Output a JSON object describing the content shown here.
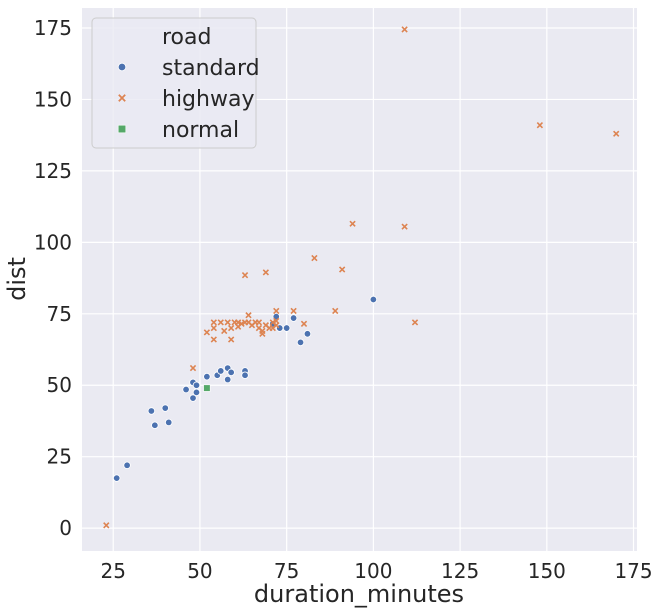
{
  "chart_data": {
    "type": "scatter",
    "xlabel": "duration_minutes",
    "ylabel": "dist",
    "xlim": [
      16,
      176
    ],
    "ylim": [
      -8,
      182
    ],
    "xticks": [
      25,
      50,
      75,
      100,
      125,
      150,
      175
    ],
    "yticks": [
      0,
      25,
      50,
      75,
      100,
      125,
      150,
      175
    ],
    "grid": true,
    "background": "#eaeaf2",
    "legend": {
      "title": "road",
      "placement": "top-left"
    },
    "series": [
      {
        "name": "standard",
        "marker": "circle",
        "color": "#4c72b0",
        "points": [
          [
            26,
            17.5
          ],
          [
            29,
            22
          ],
          [
            36,
            41
          ],
          [
            37,
            36
          ],
          [
            40,
            42
          ],
          [
            41,
            37
          ],
          [
            46,
            48.5
          ],
          [
            48,
            51
          ],
          [
            48,
            45.5
          ],
          [
            49,
            47.5
          ],
          [
            49,
            50
          ],
          [
            52,
            53
          ],
          [
            55,
            53.5
          ],
          [
            56,
            55
          ],
          [
            58,
            56
          ],
          [
            58,
            52
          ],
          [
            59,
            54.5
          ],
          [
            63,
            55
          ],
          [
            63,
            53.5
          ],
          [
            71,
            71.5
          ],
          [
            72,
            74
          ],
          [
            73,
            70
          ],
          [
            75,
            70
          ],
          [
            77,
            73.5
          ],
          [
            79,
            65
          ],
          [
            81,
            68
          ],
          [
            100,
            80
          ]
        ]
      },
      {
        "name": "highway",
        "marker": "x",
        "color": "#dd8452",
        "points": [
          [
            23,
            1
          ],
          [
            48,
            56
          ],
          [
            52,
            68.5
          ],
          [
            54,
            72
          ],
          [
            54,
            70
          ],
          [
            54,
            66
          ],
          [
            56,
            72
          ],
          [
            57,
            69
          ],
          [
            58,
            72
          ],
          [
            59,
            66
          ],
          [
            59,
            70
          ],
          [
            60,
            72
          ],
          [
            61,
            72
          ],
          [
            61,
            70.5
          ],
          [
            62,
            71.5
          ],
          [
            63,
            72
          ],
          [
            63,
            88.5
          ],
          [
            64,
            74.5
          ],
          [
            64,
            72
          ],
          [
            65,
            71
          ],
          [
            66,
            72
          ],
          [
            67,
            72
          ],
          [
            67,
            70
          ],
          [
            68,
            69
          ],
          [
            68,
            68
          ],
          [
            69,
            71
          ],
          [
            69,
            89.5
          ],
          [
            70,
            70
          ],
          [
            71,
            72
          ],
          [
            71,
            70
          ],
          [
            72,
            76
          ],
          [
            72,
            72.5
          ],
          [
            72,
            71
          ],
          [
            77,
            76
          ],
          [
            80,
            71.5
          ],
          [
            83,
            94.5
          ],
          [
            89,
            76
          ],
          [
            91,
            90.5
          ],
          [
            94,
            106.5
          ],
          [
            109,
            174.5
          ],
          [
            109,
            105.5
          ],
          [
            112,
            72
          ],
          [
            148,
            141
          ],
          [
            170,
            138
          ]
        ]
      },
      {
        "name": "normal",
        "marker": "square",
        "color": "#55a868",
        "points": [
          [
            52,
            49
          ]
        ]
      }
    ]
  }
}
